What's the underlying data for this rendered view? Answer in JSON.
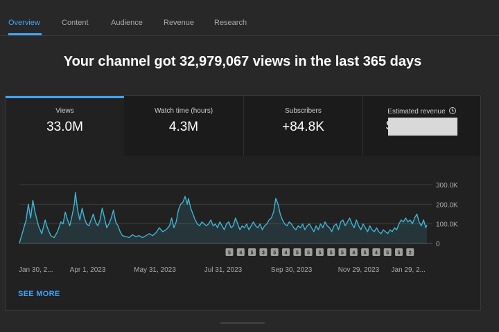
{
  "tabs": [
    {
      "label": "Overview",
      "active": true
    },
    {
      "label": "Content",
      "active": false
    },
    {
      "label": "Audience",
      "active": false
    },
    {
      "label": "Revenue",
      "active": false
    },
    {
      "label": "Research",
      "active": false
    }
  ],
  "headline": "Your channel got 32,979,067 views in the last 365 days",
  "metrics": [
    {
      "label": "Views",
      "value": "33.0M"
    },
    {
      "label": "Watch time (hours)",
      "value": "4.3M"
    },
    {
      "label": "Subscribers",
      "value": "+84.8K"
    },
    {
      "label": "Estimated revenue",
      "value": "$"
    }
  ],
  "see_more": "SEE MORE",
  "colors": {
    "accent": "#3ea6ff",
    "line": "#41b4d4"
  },
  "chart_data": {
    "type": "area",
    "title": "",
    "xlabel": "",
    "ylabel": "",
    "ylim": [
      0,
      300000
    ],
    "yticks": [
      0,
      100000,
      200000,
      300000
    ],
    "ytick_labels": [
      "0",
      "100.0K",
      "200.0K",
      "300.0K"
    ],
    "xtick_labels": [
      "Jan 30, 2...",
      "Apr 1, 2023",
      "May 31, 2023",
      "Jul 31, 2023",
      "Sep 30, 2023",
      "Nov 29, 2023",
      "Jan 29, 2..."
    ],
    "x_day_range": [
      0,
      364
    ],
    "xtick_days": [
      0,
      61,
      121,
      182,
      243,
      303,
      364
    ],
    "series": [
      {
        "name": "Views",
        "points": [
          [
            0,
            2000
          ],
          [
            3,
            60000
          ],
          [
            6,
            120000
          ],
          [
            8,
            200000
          ],
          [
            10,
            130000
          ],
          [
            12,
            220000
          ],
          [
            14,
            160000
          ],
          [
            17,
            90000
          ],
          [
            20,
            50000
          ],
          [
            23,
            120000
          ],
          [
            25,
            80000
          ],
          [
            28,
            40000
          ],
          [
            31,
            30000
          ],
          [
            34,
            60000
          ],
          [
            37,
            110000
          ],
          [
            39,
            100000
          ],
          [
            41,
            160000
          ],
          [
            43,
            120000
          ],
          [
            45,
            90000
          ],
          [
            47,
            140000
          ],
          [
            49,
            200000
          ],
          [
            50,
            260000
          ],
          [
            52,
            170000
          ],
          [
            54,
            120000
          ],
          [
            56,
            180000
          ],
          [
            58,
            130000
          ],
          [
            60,
            100000
          ],
          [
            62,
            90000
          ],
          [
            64,
            120000
          ],
          [
            66,
            150000
          ],
          [
            68,
            110000
          ],
          [
            70,
            90000
          ],
          [
            72,
            120000
          ],
          [
            74,
            180000
          ],
          [
            76,
            130000
          ],
          [
            78,
            80000
          ],
          [
            80,
            100000
          ],
          [
            82,
            130000
          ],
          [
            84,
            170000
          ],
          [
            86,
            110000
          ],
          [
            88,
            90000
          ],
          [
            90,
            60000
          ],
          [
            92,
            40000
          ],
          [
            95,
            35000
          ],
          [
            98,
            30000
          ],
          [
            101,
            45000
          ],
          [
            104,
            35000
          ],
          [
            107,
            40000
          ],
          [
            110,
            30000
          ],
          [
            113,
            40000
          ],
          [
            116,
            50000
          ],
          [
            119,
            40000
          ],
          [
            122,
            55000
          ],
          [
            125,
            80000
          ],
          [
            128,
            60000
          ],
          [
            131,
            70000
          ],
          [
            134,
            90000
          ],
          [
            136,
            130000
          ],
          [
            138,
            80000
          ],
          [
            140,
            110000
          ],
          [
            142,
            170000
          ],
          [
            144,
            200000
          ],
          [
            146,
            210000
          ],
          [
            148,
            240000
          ],
          [
            150,
            200000
          ],
          [
            151,
            230000
          ],
          [
            153,
            180000
          ],
          [
            155,
            150000
          ],
          [
            157,
            120000
          ],
          [
            159,
            100000
          ],
          [
            161,
            90000
          ],
          [
            163,
            110000
          ],
          [
            165,
            100000
          ],
          [
            167,
            90000
          ],
          [
            169,
            100000
          ],
          [
            171,
            120000
          ],
          [
            173,
            90000
          ],
          [
            175,
            100000
          ],
          [
            177,
            80000
          ],
          [
            179,
            110000
          ],
          [
            181,
            90000
          ],
          [
            183,
            70000
          ],
          [
            185,
            100000
          ],
          [
            187,
            110000
          ],
          [
            189,
            80000
          ],
          [
            191,
            90000
          ],
          [
            193,
            130000
          ],
          [
            195,
            100000
          ],
          [
            197,
            70000
          ],
          [
            199,
            90000
          ],
          [
            201,
            80000
          ],
          [
            203,
            100000
          ],
          [
            205,
            70000
          ],
          [
            207,
            90000
          ],
          [
            209,
            110000
          ],
          [
            211,
            90000
          ],
          [
            213,
            80000
          ],
          [
            215,
            100000
          ],
          [
            217,
            70000
          ],
          [
            219,
            90000
          ],
          [
            221,
            100000
          ],
          [
            223,
            120000
          ],
          [
            225,
            130000
          ],
          [
            227,
            160000
          ],
          [
            229,
            230000
          ],
          [
            231,
            200000
          ],
          [
            233,
            150000
          ],
          [
            235,
            120000
          ],
          [
            237,
            100000
          ],
          [
            239,
            90000
          ],
          [
            241,
            110000
          ],
          [
            243,
            100000
          ],
          [
            245,
            80000
          ],
          [
            247,
            70000
          ],
          [
            249,
            90000
          ],
          [
            251,
            80000
          ],
          [
            253,
            100000
          ],
          [
            255,
            70000
          ],
          [
            257,
            90000
          ],
          [
            259,
            100000
          ],
          [
            261,
            80000
          ],
          [
            263,
            60000
          ],
          [
            265,
            90000
          ],
          [
            267,
            70000
          ],
          [
            269,
            100000
          ],
          [
            271,
            80000
          ],
          [
            273,
            110000
          ],
          [
            275,
            90000
          ],
          [
            277,
            80000
          ],
          [
            279,
            60000
          ],
          [
            281,
            90000
          ],
          [
            283,
            100000
          ],
          [
            285,
            70000
          ],
          [
            287,
            110000
          ],
          [
            289,
            120000
          ],
          [
            291,
            90000
          ],
          [
            293,
            110000
          ],
          [
            295,
            130000
          ],
          [
            297,
            100000
          ],
          [
            299,
            80000
          ],
          [
            301,
            120000
          ],
          [
            303,
            90000
          ],
          [
            305,
            70000
          ],
          [
            307,
            100000
          ],
          [
            309,
            80000
          ],
          [
            311,
            60000
          ],
          [
            313,
            90000
          ],
          [
            315,
            70000
          ],
          [
            317,
            60000
          ],
          [
            319,
            80000
          ],
          [
            321,
            60000
          ],
          [
            323,
            50000
          ],
          [
            325,
            70000
          ],
          [
            327,
            60000
          ],
          [
            329,
            50000
          ],
          [
            331,
            70000
          ],
          [
            333,
            60000
          ],
          [
            335,
            80000
          ],
          [
            337,
            70000
          ],
          [
            339,
            100000
          ],
          [
            341,
            120000
          ],
          [
            343,
            110000
          ],
          [
            345,
            130000
          ],
          [
            347,
            110000
          ],
          [
            349,
            120000
          ],
          [
            351,
            100000
          ],
          [
            353,
            130000
          ],
          [
            355,
            150000
          ],
          [
            357,
            110000
          ],
          [
            359,
            90000
          ],
          [
            361,
            120000
          ],
          [
            363,
            80000
          ],
          [
            364,
            95000
          ]
        ]
      }
    ],
    "markers": [
      "5",
      "4",
      "5",
      "3",
      "5",
      "4",
      "5",
      "5",
      "5",
      "5",
      "5",
      "4",
      "5",
      "4",
      "5",
      "5",
      "2"
    ]
  }
}
